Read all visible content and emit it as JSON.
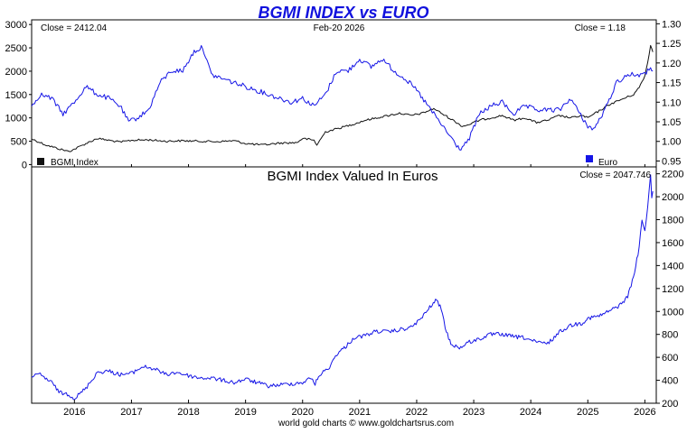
{
  "title": "BGMI INDEX vs EURO",
  "credit": "world gold charts © www.goldchartsrus.com",
  "date_label": "Feb-20  2026",
  "colors": {
    "title": "#1111dd",
    "index": "#111111",
    "euro": "#1515e6",
    "ratio": "#1515e6",
    "frame": "#000000"
  },
  "chart_data": [
    {
      "type": "line",
      "title": "",
      "close_left": "Close = 2412.04",
      "close_right": "Close = 1.18",
      "x_ticks": [
        "2016",
        "2017",
        "2018",
        "2019",
        "2020",
        "2021",
        "2022",
        "2023",
        "2024",
        "2025",
        "2026"
      ],
      "xlim": [
        2015.25,
        2026.2
      ],
      "left_axis": {
        "ylim": [
          -50,
          3100
        ],
        "ticks": [
          "0",
          "500",
          "1000",
          "1500",
          "2000",
          "2500",
          "3000"
        ]
      },
      "right_axis": {
        "ylim": [
          0.935,
          1.31
        ],
        "ticks": [
          "0.95",
          "1.00",
          "1.05",
          "1.10",
          "1.15",
          "1.20",
          "1.25",
          "1.30"
        ]
      },
      "legend": [
        {
          "label": "BGMI Index",
          "color": "#111111"
        },
        {
          "label": "Euro",
          "color": "#1515e6"
        }
      ],
      "series": [
        {
          "name": "BGMI Index",
          "axis": "left",
          "color": "#111111",
          "x": [
            2015.25,
            2015.5,
            2015.75,
            2015.9,
            2016.0,
            2016.2,
            2016.4,
            2016.6,
            2016.8,
            2017.0,
            2017.3,
            2017.6,
            2017.9,
            2018.2,
            2018.5,
            2018.8,
            2019.0,
            2019.3,
            2019.6,
            2019.9,
            2020.0,
            2020.2,
            2020.25,
            2020.4,
            2020.7,
            2020.9,
            2021.1,
            2021.3,
            2021.5,
            2021.7,
            2021.9,
            2022.1,
            2022.3,
            2022.5,
            2022.7,
            2022.8,
            2022.9,
            2023.1,
            2023.3,
            2023.5,
            2023.7,
            2023.9,
            2024.1,
            2024.3,
            2024.5,
            2024.7,
            2024.9,
            2025.0,
            2025.2,
            2025.4,
            2025.6,
            2025.8,
            2025.9,
            2026.0,
            2026.05,
            2026.1,
            2026.14
          ],
          "y": [
            550,
            420,
            330,
            280,
            330,
            450,
            560,
            520,
            480,
            520,
            530,
            500,
            510,
            500,
            490,
            510,
            450,
            420,
            460,
            470,
            560,
            520,
            420,
            700,
            800,
            870,
            950,
            1000,
            1050,
            1100,
            1050,
            1100,
            1200,
            1050,
            900,
            820,
            850,
            950,
            1000,
            1050,
            950,
            1000,
            900,
            950,
            1050,
            1000,
            1050,
            1000,
            1150,
            1300,
            1400,
            1500,
            1650,
            1900,
            2200,
            2550,
            2412.04
          ]
        },
        {
          "name": "Euro",
          "axis": "right",
          "color": "#1515e6",
          "x": [
            2015.25,
            2015.4,
            2015.6,
            2015.8,
            2016.0,
            2016.2,
            2016.4,
            2016.6,
            2016.8,
            2016.95,
            2017.1,
            2017.3,
            2017.5,
            2017.7,
            2017.9,
            2018.1,
            2018.25,
            2018.4,
            2018.6,
            2018.8,
            2019.0,
            2019.2,
            2019.4,
            2019.6,
            2019.8,
            2020.0,
            2020.2,
            2020.4,
            2020.6,
            2020.8,
            2021.0,
            2021.2,
            2021.4,
            2021.6,
            2021.8,
            2022.0,
            2022.2,
            2022.4,
            2022.6,
            2022.75,
            2022.9,
            2023.1,
            2023.3,
            2023.5,
            2023.7,
            2023.9,
            2024.1,
            2024.3,
            2024.5,
            2024.7,
            2024.9,
            2025.0,
            2025.1,
            2025.3,
            2025.5,
            2025.7,
            2025.9,
            2026.0,
            2026.1,
            2026.14
          ],
          "y": [
            1.09,
            1.12,
            1.11,
            1.07,
            1.1,
            1.14,
            1.12,
            1.11,
            1.09,
            1.05,
            1.06,
            1.08,
            1.15,
            1.18,
            1.18,
            1.23,
            1.24,
            1.17,
            1.16,
            1.15,
            1.14,
            1.13,
            1.12,
            1.11,
            1.1,
            1.11,
            1.09,
            1.12,
            1.18,
            1.18,
            1.21,
            1.19,
            1.21,
            1.18,
            1.16,
            1.13,
            1.09,
            1.05,
            1.01,
            0.98,
            1.0,
            1.07,
            1.09,
            1.1,
            1.07,
            1.09,
            1.08,
            1.08,
            1.08,
            1.11,
            1.06,
            1.04,
            1.03,
            1.08,
            1.15,
            1.17,
            1.17,
            1.17,
            1.19,
            1.18
          ]
        }
      ]
    },
    {
      "type": "line",
      "title": "BGMI Index Valued In Euros",
      "close_right": "Close = 2047.746",
      "x_ticks": [
        "2016",
        "2017",
        "2018",
        "2019",
        "2020",
        "2021",
        "2022",
        "2023",
        "2024",
        "2025",
        "2026"
      ],
      "xlim": [
        2015.25,
        2026.2
      ],
      "right_axis": {
        "ylim": [
          200,
          2260
        ],
        "ticks": [
          "200",
          "400",
          "600",
          "800",
          "1000",
          "1200",
          "1400",
          "1600",
          "1800",
          "2000",
          "2200"
        ]
      },
      "series": [
        {
          "name": "",
          "axis": "right",
          "color": "#1515e6",
          "x": [
            2015.25,
            2015.4,
            2015.6,
            2015.75,
            2015.9,
            2016.0,
            2016.2,
            2016.4,
            2016.6,
            2016.8,
            2017.0,
            2017.2,
            2017.4,
            2017.6,
            2017.8,
            2018.0,
            2018.2,
            2018.4,
            2018.6,
            2018.8,
            2019.0,
            2019.2,
            2019.4,
            2019.6,
            2019.8,
            2020.0,
            2020.15,
            2020.22,
            2020.3,
            2020.45,
            2020.6,
            2020.75,
            2020.9,
            2021.1,
            2021.3,
            2021.5,
            2021.7,
            2021.9,
            2022.1,
            2022.25,
            2022.35,
            2022.45,
            2022.5,
            2022.6,
            2022.75,
            2022.9,
            2023.1,
            2023.3,
            2023.5,
            2023.7,
            2023.9,
            2024.1,
            2024.3,
            2024.5,
            2024.7,
            2024.9,
            2025.0,
            2025.2,
            2025.4,
            2025.55,
            2025.7,
            2025.8,
            2025.9,
            2025.95,
            2026.0,
            2026.05,
            2026.08,
            2026.1,
            2026.12,
            2026.14
          ],
          "y": [
            430,
            450,
            380,
            290,
            280,
            240,
            330,
            470,
            480,
            450,
            460,
            520,
            500,
            450,
            470,
            440,
            420,
            420,
            400,
            380,
            410,
            380,
            350,
            360,
            370,
            380,
            420,
            370,
            450,
            500,
            630,
            690,
            770,
            790,
            830,
            820,
            840,
            860,
            950,
            1050,
            1100,
            1000,
            850,
            720,
            680,
            730,
            760,
            800,
            800,
            780,
            770,
            730,
            720,
            820,
            880,
            900,
            940,
            960,
            1010,
            1050,
            1130,
            1300,
            1550,
            1800,
            1700,
            1900,
            2100,
            2180,
            2000,
            2047.746
          ]
        }
      ]
    }
  ]
}
